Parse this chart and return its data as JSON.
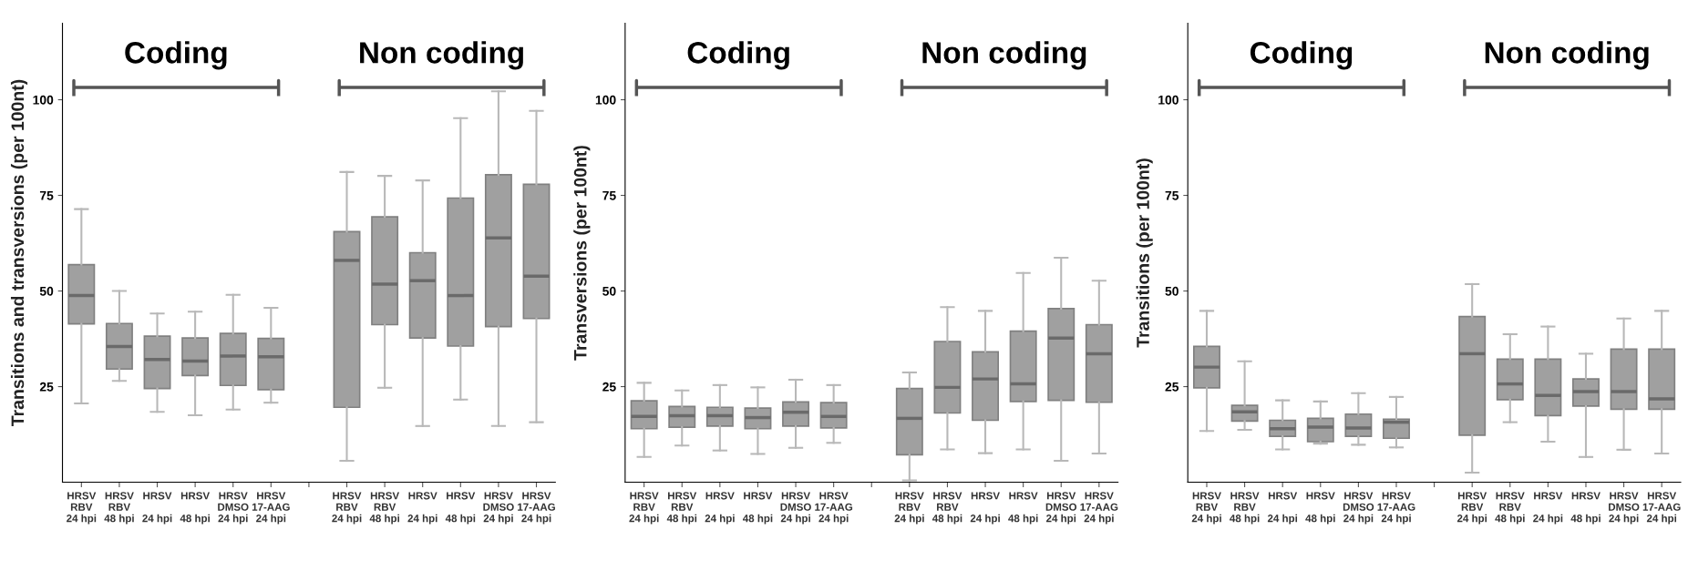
{
  "chart_data": [
    {
      "type": "box",
      "ylabel": "Transitions and transversions (per 100nt)",
      "annotations": [
        "Coding",
        "Non coding"
      ],
      "ylim": [
        0,
        120
      ],
      "yticks": [
        25,
        50,
        75,
        100
      ],
      "grid": false,
      "color": "#a0a0a0",
      "categories": [
        "HRSV\nRBV\n24 hpi",
        "HRSV\nRBV\n48 hpi",
        "HRSV\n\n24 hpi",
        "HRSV\n\n48 hpi",
        "HRSV\nDMSO\n24 hpi",
        "HRSV\n17-AAG\n24 hpi",
        null,
        "HRSV\nRBV\n24 hpi",
        "HRSV\nRBV\n48 hpi",
        "HRSV\n\n24 hpi",
        "HRSV\n\n48 hpi",
        "HRSV\nDMSO\n24 hpi",
        "HRSV\n17-AAG\n24 hpi"
      ],
      "boxes": [
        {
          "low": 20.6,
          "q1": 41.4,
          "median": 48.8,
          "q3": 56.9,
          "high": 71.4
        },
        {
          "low": 26.5,
          "q1": 29.6,
          "median": 35.5,
          "q3": 41.5,
          "high": 50
        },
        {
          "low": 18.4,
          "q1": 24.5,
          "median": 32.1,
          "q3": 38.2,
          "high": 44.1
        },
        {
          "low": 17.5,
          "q1": 27.9,
          "median": 31.7,
          "q3": 37.7,
          "high": 44.6
        },
        {
          "low": 19,
          "q1": 25.3,
          "median": 33,
          "q3": 38.9,
          "high": 49
        },
        {
          "low": 20.8,
          "q1": 24.2,
          "median": 32.8,
          "q3": 37.6,
          "high": 45.6
        },
        null,
        {
          "low": 5.6,
          "q1": 19.6,
          "median": 58,
          "q3": 65.5,
          "high": 81.1
        },
        {
          "low": 24.7,
          "q1": 41.2,
          "median": 51.8,
          "q3": 69.4,
          "high": 80.1
        },
        {
          "low": 14.7,
          "q1": 37.7,
          "median": 52.7,
          "q3": 60,
          "high": 78.9
        },
        {
          "low": 21.6,
          "q1": 35.6,
          "median": 48.8,
          "q3": 74.3,
          "high": 95.2
        },
        {
          "low": 14.7,
          "q1": 40.7,
          "median": 63.9,
          "q3": 80.4,
          "high": 102.2
        },
        {
          "low": 15.7,
          "q1": 42.8,
          "median": 53.9,
          "q3": 77.9,
          "high": 97.1
        }
      ]
    },
    {
      "type": "box",
      "ylabel": "Transversions (per 100nt)",
      "annotations": [
        "Coding",
        "Non coding"
      ],
      "ylim": [
        0,
        120
      ],
      "yticks": [
        25,
        50,
        75,
        100
      ],
      "grid": false,
      "color": "#a0a0a0",
      "categories": [
        "HRSV\nRBV\n24 hpi",
        "HRSV\nRBV\n48 hpi",
        "HRSV\n\n24 hpi",
        "HRSV\n\n48 hpi",
        "HRSV\nDMSO\n24 hpi",
        "HRSV\n17-AAG\n24 hpi",
        null,
        "HRSV\nRBV\n24 hpi",
        "HRSV\nRBV\n48 hpi",
        "HRSV\n\n24 hpi",
        "HRSV\n\n48 hpi",
        "HRSV\nDMSO\n24 hpi",
        "HRSV\n17-AAG\n24 hpi"
      ],
      "boxes": [
        {
          "low": 6.6,
          "q1": 14,
          "median": 17.2,
          "q3": 21.3,
          "high": 26
        },
        {
          "low": 9.6,
          "q1": 14.4,
          "median": 17.4,
          "q3": 19.8,
          "high": 24
        },
        {
          "low": 8.3,
          "q1": 14.7,
          "median": 17.4,
          "q3": 19.6,
          "high": 25.4
        },
        {
          "low": 7.4,
          "q1": 14,
          "median": 16.9,
          "q3": 19.4,
          "high": 24.8
        },
        {
          "low": 9,
          "q1": 14.7,
          "median": 18.3,
          "q3": 21,
          "high": 26.8
        },
        {
          "low": 10.3,
          "q1": 14.2,
          "median": 17.2,
          "q3": 20.8,
          "high": 25.4
        },
        null,
        {
          "low": 0.5,
          "q1": 7.2,
          "median": 16.7,
          "q3": 24.5,
          "high": 28.7
        },
        {
          "low": 8.6,
          "q1": 18.1,
          "median": 24.8,
          "q3": 36.8,
          "high": 45.8
        },
        {
          "low": 7.6,
          "q1": 16.2,
          "median": 27,
          "q3": 34.1,
          "high": 44.8
        },
        {
          "low": 8.6,
          "q1": 21.1,
          "median": 25.7,
          "q3": 39.5,
          "high": 54.7
        },
        {
          "low": 5.6,
          "q1": 21.4,
          "median": 37.7,
          "q3": 45.4,
          "high": 58.7
        },
        {
          "low": 7.5,
          "q1": 20.9,
          "median": 33.6,
          "q3": 41.2,
          "high": 52.7
        }
      ]
    },
    {
      "type": "box",
      "ylabel": "Transitions (per 100nt)",
      "annotations": [
        "Coding",
        "Non coding"
      ],
      "ylim": [
        0,
        120
      ],
      "yticks": [
        25,
        50,
        75,
        100
      ],
      "grid": false,
      "color": "#a0a0a0",
      "categories": [
        "HRSV\nRBV\n24 hpi",
        "HRSV\nRBV\n48 hpi",
        "HRSV\n\n24 hpi",
        "HRSV\n\n48 hpi",
        "HRSV\nDMSO\n24 hpi",
        "HRSV\n17-AAG\n24 hpi",
        null,
        "HRSV\nRBV\n24 hpi",
        "HRSV\nRBV\n48 hpi",
        "HRSV\n\n24 hpi",
        "HRSV\n\n48 hpi",
        "HRSV\nDMSO\n24 hpi",
        "HRSV\n17-AAG\n24 hpi"
      ],
      "boxes": [
        {
          "low": 13.4,
          "q1": 24.7,
          "median": 30.1,
          "q3": 35.5,
          "high": 44.8
        },
        {
          "low": 13.7,
          "q1": 16,
          "median": 18.4,
          "q3": 20.1,
          "high": 31.6
        },
        {
          "low": 8.6,
          "q1": 12,
          "median": 14,
          "q3": 16.2,
          "high": 21.4
        },
        {
          "low": 10.1,
          "q1": 10.6,
          "median": 14.4,
          "q3": 16.7,
          "high": 21.1
        },
        {
          "low": 9.8,
          "q1": 12,
          "median": 14.2,
          "q3": 17.8,
          "high": 23.3
        },
        {
          "low": 9.1,
          "q1": 11.5,
          "median": 15.7,
          "q3": 16.5,
          "high": 22.3
        },
        null,
        {
          "low": 2.5,
          "q1": 12.3,
          "median": 33.6,
          "q3": 43.3,
          "high": 51.8
        },
        {
          "low": 15.7,
          "q1": 21.6,
          "median": 25.7,
          "q3": 32.2,
          "high": 38.7
        },
        {
          "low": 10.6,
          "q1": 17.4,
          "median": 22.7,
          "q3": 32.2,
          "high": 40.7
        },
        {
          "low": 6.6,
          "q1": 19.9,
          "median": 23.7,
          "q3": 27,
          "high": 33.6
        },
        {
          "low": 8.5,
          "q1": 19.1,
          "median": 23.7,
          "q3": 34.8,
          "high": 42.8
        },
        {
          "low": 7.5,
          "q1": 19.1,
          "median": 21.8,
          "q3": 34.8,
          "high": 44.8
        }
      ]
    }
  ]
}
